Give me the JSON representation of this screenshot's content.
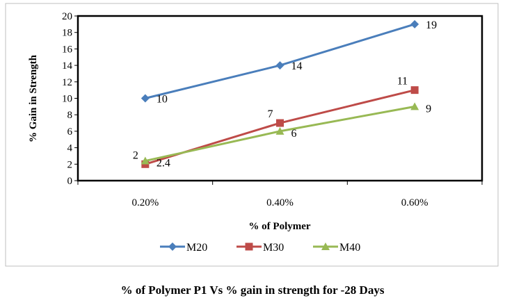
{
  "chart_data": {
    "type": "line",
    "title": "% of Polymer P1 Vs % gain in strength for -28 Days",
    "xlabel": "% of Polymer",
    "ylabel": "% Gain in Strength",
    "categories": [
      "0.20%",
      "0.40%",
      "0.60%"
    ],
    "ylim": [
      0,
      20
    ],
    "yticks": [
      "0",
      "2",
      "4",
      "6",
      "8",
      "10",
      "12",
      "14",
      "16",
      "18",
      "20"
    ],
    "legend_position": "bottom",
    "series": [
      {
        "name": "M20",
        "values": [
          10,
          14,
          19
        ],
        "labels": [
          "10",
          "14",
          "19"
        ],
        "color": "#4a7ebb",
        "marker": "diamond"
      },
      {
        "name": "M30",
        "values": [
          2,
          7,
          11
        ],
        "labels": [
          "2",
          "7",
          "11"
        ],
        "color": "#be4b48",
        "marker": "square"
      },
      {
        "name": "M40",
        "values": [
          2.4,
          6,
          9
        ],
        "labels": [
          "2.4",
          "6",
          "9"
        ],
        "color": "#98b954",
        "marker": "triangle"
      }
    ]
  }
}
